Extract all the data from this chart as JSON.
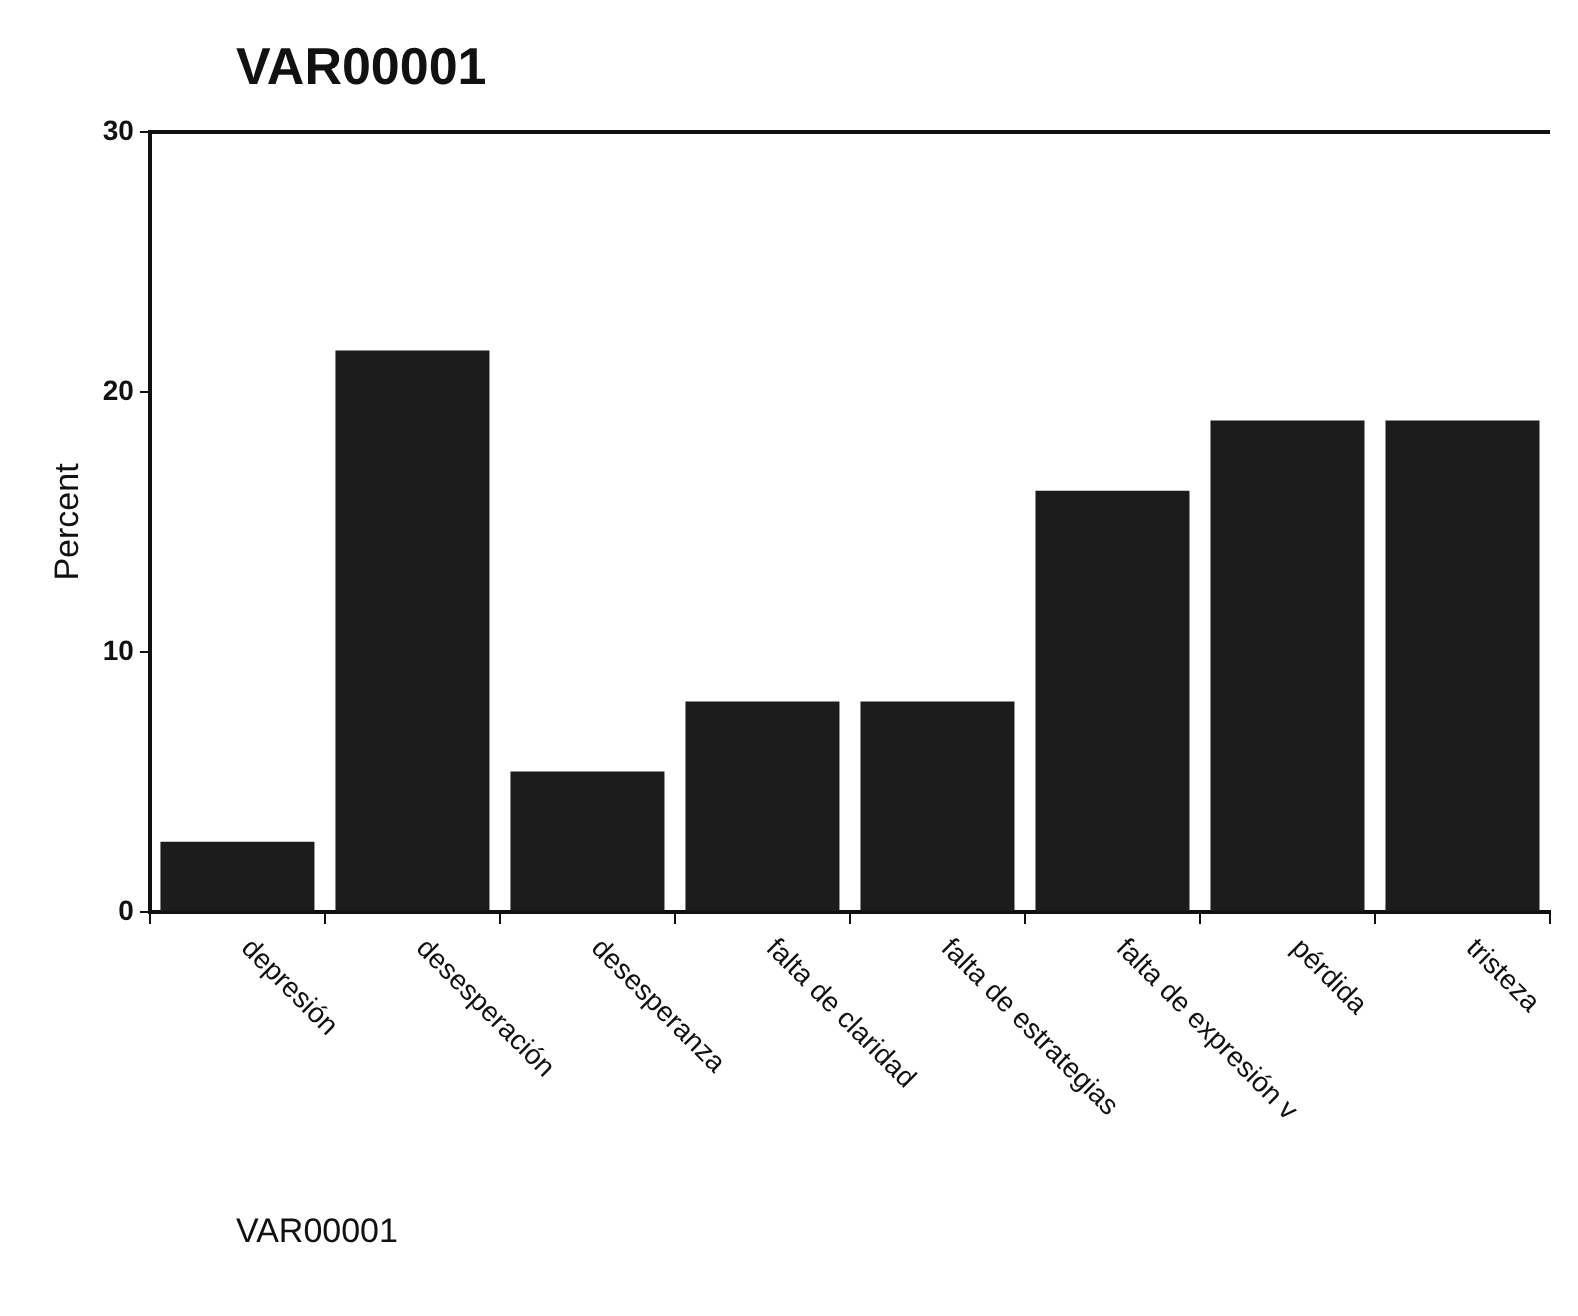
{
  "chart_data": {
    "type": "bar",
    "title": "VAR00001",
    "xlabel": "VAR00001",
    "ylabel": "Percent",
    "categories": [
      "depresión",
      "desesperación",
      "desesperanza",
      "falta de claridad",
      "falta de estrategias",
      "falta de expresión v",
      "pérdida",
      "tristeza"
    ],
    "values": [
      2.7,
      21.6,
      5.4,
      8.1,
      8.1,
      16.2,
      18.9,
      18.9
    ],
    "color": "#1c1c1c",
    "ylim": [
      0,
      30
    ],
    "yticks": [
      0,
      10,
      20,
      30
    ],
    "grid": false,
    "legend": false
  }
}
